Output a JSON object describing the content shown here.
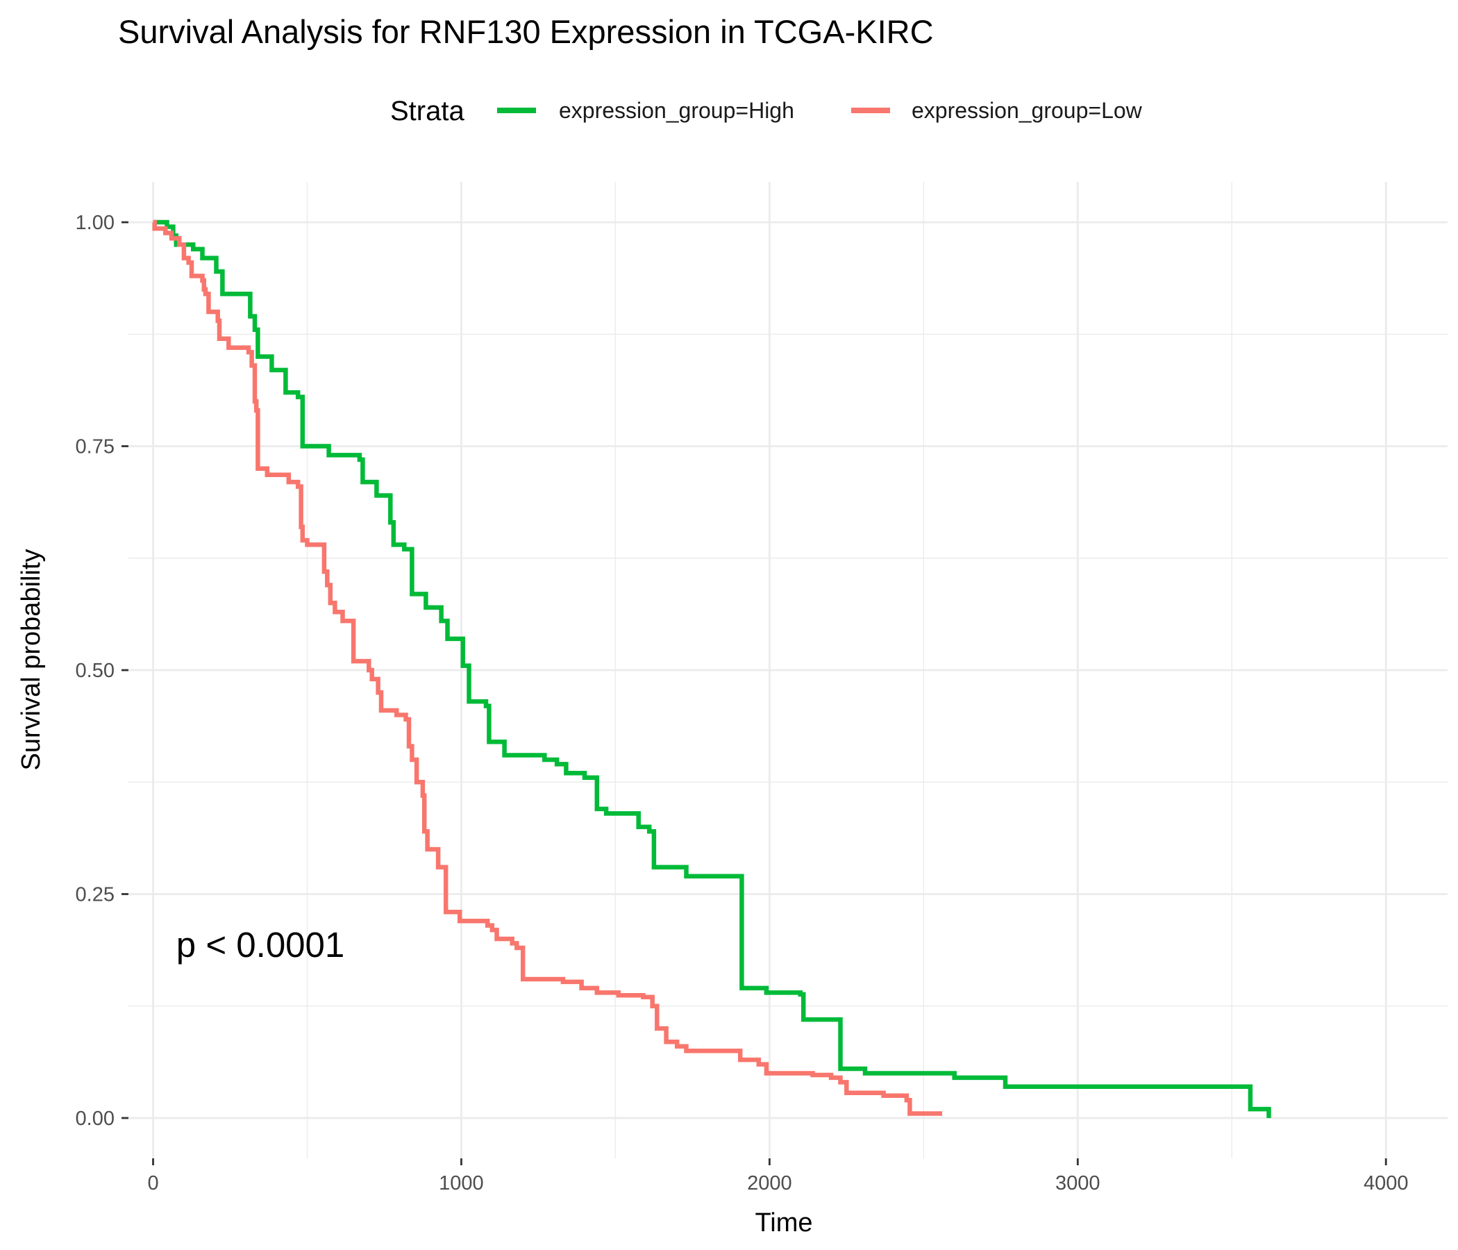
{
  "chart_data": {
    "type": "line",
    "subtype": "step",
    "title": "Survival Analysis for RNF130 Expression in TCGA-KIRC",
    "xlabel": "Time",
    "ylabel": "Survival probability",
    "xlim": [
      -80,
      4200
    ],
    "ylim": [
      -0.045,
      1.045
    ],
    "x_ticks": [
      0,
      1000,
      2000,
      3000,
      4000
    ],
    "x_tick_labels": [
      "0",
      "1000",
      "2000",
      "3000",
      "4000"
    ],
    "y_ticks": [
      0,
      0.25,
      0.5,
      0.75,
      1.0
    ],
    "y_tick_labels": [
      "0.00",
      "0.25",
      "0.50",
      "0.75",
      "1.00"
    ],
    "grid": true,
    "legend": {
      "title": "Strata",
      "position": "top"
    },
    "annotation": {
      "text": "p < 0.0001",
      "x": 75,
      "y": 0.18
    },
    "series": [
      {
        "name": "expression_group=High",
        "color": "#00BA38",
        "points": [
          [
            0,
            1.0
          ],
          [
            45,
            0.995
          ],
          [
            65,
            0.985
          ],
          [
            75,
            0.975
          ],
          [
            130,
            0.97
          ],
          [
            160,
            0.96
          ],
          [
            205,
            0.945
          ],
          [
            225,
            0.92
          ],
          [
            315,
            0.895
          ],
          [
            330,
            0.88
          ],
          [
            340,
            0.85
          ],
          [
            385,
            0.835
          ],
          [
            430,
            0.81
          ],
          [
            470,
            0.805
          ],
          [
            485,
            0.75
          ],
          [
            570,
            0.74
          ],
          [
            670,
            0.735
          ],
          [
            680,
            0.71
          ],
          [
            725,
            0.695
          ],
          [
            770,
            0.665
          ],
          [
            780,
            0.64
          ],
          [
            815,
            0.635
          ],
          [
            840,
            0.585
          ],
          [
            885,
            0.57
          ],
          [
            935,
            0.555
          ],
          [
            955,
            0.535
          ],
          [
            1005,
            0.505
          ],
          [
            1025,
            0.465
          ],
          [
            1080,
            0.46
          ],
          [
            1090,
            0.42
          ],
          [
            1140,
            0.405
          ],
          [
            1270,
            0.4
          ],
          [
            1310,
            0.395
          ],
          [
            1340,
            0.385
          ],
          [
            1400,
            0.38
          ],
          [
            1440,
            0.345
          ],
          [
            1470,
            0.34
          ],
          [
            1575,
            0.325
          ],
          [
            1610,
            0.32
          ],
          [
            1625,
            0.28
          ],
          [
            1730,
            0.27
          ],
          [
            1910,
            0.145
          ],
          [
            1990,
            0.14
          ],
          [
            2100,
            0.138
          ],
          [
            2110,
            0.11
          ],
          [
            2230,
            0.055
          ],
          [
            2310,
            0.05
          ],
          [
            2600,
            0.045
          ],
          [
            2765,
            0.035
          ],
          [
            3560,
            0.01
          ],
          [
            3620,
            0.0
          ]
        ]
      },
      {
        "name": "expression_group=Low",
        "color": "#F8766D",
        "points": [
          [
            0,
            1.0
          ],
          [
            5,
            0.993
          ],
          [
            40,
            0.988
          ],
          [
            60,
            0.982
          ],
          [
            85,
            0.975
          ],
          [
            100,
            0.96
          ],
          [
            115,
            0.955
          ],
          [
            125,
            0.94
          ],
          [
            150,
            0.94
          ],
          [
            160,
            0.935
          ],
          [
            165,
            0.925
          ],
          [
            170,
            0.92
          ],
          [
            180,
            0.9
          ],
          [
            210,
            0.89
          ],
          [
            215,
            0.87
          ],
          [
            245,
            0.86
          ],
          [
            310,
            0.855
          ],
          [
            320,
            0.84
          ],
          [
            330,
            0.8
          ],
          [
            335,
            0.79
          ],
          [
            340,
            0.725
          ],
          [
            370,
            0.718
          ],
          [
            440,
            0.71
          ],
          [
            470,
            0.705
          ],
          [
            480,
            0.66
          ],
          [
            485,
            0.645
          ],
          [
            500,
            0.64
          ],
          [
            555,
            0.61
          ],
          [
            565,
            0.595
          ],
          [
            575,
            0.575
          ],
          [
            590,
            0.565
          ],
          [
            615,
            0.555
          ],
          [
            650,
            0.51
          ],
          [
            700,
            0.5
          ],
          [
            710,
            0.49
          ],
          [
            730,
            0.475
          ],
          [
            740,
            0.455
          ],
          [
            790,
            0.45
          ],
          [
            820,
            0.445
          ],
          [
            830,
            0.415
          ],
          [
            840,
            0.4
          ],
          [
            855,
            0.375
          ],
          [
            875,
            0.36
          ],
          [
            880,
            0.32
          ],
          [
            890,
            0.3
          ],
          [
            925,
            0.28
          ],
          [
            950,
            0.23
          ],
          [
            995,
            0.22
          ],
          [
            1085,
            0.215
          ],
          [
            1100,
            0.21
          ],
          [
            1115,
            0.2
          ],
          [
            1165,
            0.195
          ],
          [
            1180,
            0.19
          ],
          [
            1200,
            0.155
          ],
          [
            1330,
            0.152
          ],
          [
            1390,
            0.145
          ],
          [
            1440,
            0.14
          ],
          [
            1510,
            0.137
          ],
          [
            1590,
            0.135
          ],
          [
            1620,
            0.125
          ],
          [
            1635,
            0.1
          ],
          [
            1665,
            0.085
          ],
          [
            1700,
            0.08
          ],
          [
            1730,
            0.075
          ],
          [
            1905,
            0.065
          ],
          [
            1965,
            0.06
          ],
          [
            1990,
            0.05
          ],
          [
            2140,
            0.048
          ],
          [
            2200,
            0.045
          ],
          [
            2230,
            0.04
          ],
          [
            2250,
            0.028
          ],
          [
            2370,
            0.025
          ],
          [
            2445,
            0.02
          ],
          [
            2455,
            0.005
          ],
          [
            2560,
            0.005
          ]
        ]
      }
    ]
  }
}
